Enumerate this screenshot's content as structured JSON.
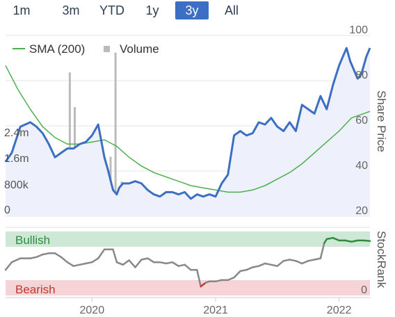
{
  "range_selector": {
    "buttons": [
      "1m",
      "3m",
      "YTD",
      "1y",
      "3y",
      "All"
    ],
    "active": "3y"
  },
  "colors": {
    "price": "#3b6fc4",
    "sma": "#4caf50",
    "volume": "#bbbbbb",
    "area_fill": "#eef1fb",
    "bullish_band": "#cde9d6",
    "bearish_band": "#f6d3d6",
    "bullish_text": "#2e8a3e",
    "bearish_text": "#c0392b",
    "rank_neutral": "#888888",
    "rank_bull": "#2e8b3a",
    "rank_bear": "#c0392b"
  },
  "chart_data": [
    {
      "type": "line",
      "x_axis": {
        "start": 2019.3,
        "end": 2022.25,
        "ticks": [
          "2020",
          "2021",
          "2022"
        ],
        "tick_values": [
          2020,
          2021,
          2022
        ]
      },
      "price_axis": {
        "title": "Share Price",
        "ticks": [
          "100",
          "80",
          "60",
          "40",
          "20"
        ],
        "tick_values": [
          100,
          80,
          60,
          40,
          20
        ],
        "ylim": [
          15,
          100
        ]
      },
      "volume_axis": {
        "ticks": [
          "2.4m",
          "1.6m",
          "800k",
          "0"
        ],
        "tick_values": [
          2400000,
          1600000,
          800000,
          0
        ],
        "ylim": [
          0,
          3800000
        ]
      },
      "legend": {
        "sma_label": "SMA (200)",
        "volume_label": "Volume",
        "placement": "top-left"
      },
      "series": [
        {
          "name": "Share Price",
          "x": [
            2019.3,
            2019.35,
            2019.42,
            2019.5,
            2019.55,
            2019.6,
            2019.65,
            2019.7,
            2019.75,
            2019.8,
            2019.85,
            2019.9,
            2019.95,
            2020.0,
            2020.05,
            2020.1,
            2020.13,
            2020.17,
            2020.2,
            2020.22,
            2020.25,
            2020.3,
            2020.35,
            2020.4,
            2020.45,
            2020.5,
            2020.55,
            2020.6,
            2020.65,
            2020.7,
            2020.75,
            2020.8,
            2020.85,
            2020.9,
            2020.95,
            2021.0,
            2021.05,
            2021.1,
            2021.15,
            2021.2,
            2021.25,
            2021.3,
            2021.35,
            2021.4,
            2021.45,
            2021.5,
            2021.55,
            2021.6,
            2021.65,
            2021.7,
            2021.75,
            2021.8,
            2021.85,
            2021.9,
            2021.95,
            2022.0,
            2022.03,
            2022.06,
            2022.09,
            2022.12,
            2022.15,
            2022.18,
            2022.22,
            2022.25
          ],
          "values": [
            40,
            44,
            56,
            58,
            56,
            53,
            48,
            42,
            44,
            46,
            46,
            48,
            49,
            52,
            57,
            42,
            36,
            27,
            25,
            28,
            30,
            30,
            31,
            30,
            27,
            25,
            24,
            26,
            26,
            25,
            26,
            23,
            25,
            24,
            25,
            24,
            30,
            34,
            52,
            54,
            52,
            53,
            58,
            57,
            60,
            56,
            54,
            58,
            54,
            66,
            64,
            62,
            70,
            64,
            75,
            84,
            88,
            92,
            86,
            82,
            78,
            80,
            88,
            92
          ]
        },
        {
          "name": "SMA (200)",
          "x": [
            2019.3,
            2019.4,
            2019.5,
            2019.6,
            2019.7,
            2019.8,
            2019.9,
            2020.0,
            2020.1,
            2020.2,
            2020.3,
            2020.4,
            2020.5,
            2020.6,
            2020.7,
            2020.8,
            2020.9,
            2021.0,
            2021.1,
            2021.2,
            2021.3,
            2021.4,
            2021.5,
            2021.6,
            2021.7,
            2021.8,
            2021.9,
            2022.0,
            2022.1,
            2022.2,
            2022.25
          ],
          "values": [
            84,
            73,
            64,
            56,
            51,
            48,
            48,
            49,
            50,
            47,
            42,
            38,
            35,
            33,
            31,
            29,
            28,
            27,
            26,
            26,
            27,
            29,
            32,
            35,
            39,
            44,
            49,
            54,
            60,
            62,
            63
          ]
        },
        {
          "name": "Volume",
          "x": [
            2019.4,
            2019.5,
            2019.58,
            2019.65,
            2019.7,
            2019.75,
            2019.82,
            2019.86,
            2019.9,
            2019.95,
            2020.0,
            2020.05,
            2020.1,
            2020.15,
            2020.19,
            2020.24,
            2020.3,
            2020.35,
            2020.42,
            2020.5,
            2020.6,
            2020.7,
            2020.8,
            2020.9,
            2021.0,
            2021.05,
            2021.1,
            2021.13,
            2021.16,
            2021.19,
            2021.22,
            2021.26,
            2021.3,
            2021.35,
            2021.4,
            2021.45,
            2021.5,
            2021.55,
            2021.6,
            2021.65,
            2021.7,
            2021.75,
            2021.8,
            2021.85,
            2021.9,
            2021.95,
            2022.0,
            2022.05,
            2022.1,
            2022.15,
            2022.2
          ],
          "values": [
            180000,
            240000,
            160000,
            320000,
            1100000,
            420000,
            2900000,
            2200000,
            350000,
            290000,
            170000,
            240000,
            300000,
            1200000,
            3300000,
            700000,
            550000,
            320000,
            250000,
            210000,
            200000,
            230000,
            260000,
            320000,
            180000,
            260000,
            620000,
            880000,
            780000,
            1500000,
            1100000,
            560000,
            420000,
            330000,
            280000,
            240000,
            260000,
            230000,
            300000,
            240000,
            280000,
            330000,
            390000,
            500000,
            420000,
            360000,
            340000,
            460000,
            390000,
            420000,
            300000
          ]
        }
      ]
    },
    {
      "type": "line",
      "axis": {
        "title": "StockRank",
        "ticks": [
          "0"
        ],
        "tick_values": [
          0
        ],
        "ylim": [
          0,
          100
        ]
      },
      "bands": [
        {
          "label": "Bullish",
          "from": 80,
          "to": 100
        },
        {
          "label": "Bearish",
          "from": 0,
          "to": 20
        }
      ],
      "series": [
        {
          "name": "StockRank",
          "x": [
            2019.3,
            2019.35,
            2019.42,
            2019.5,
            2019.55,
            2019.6,
            2019.65,
            2019.7,
            2019.75,
            2019.8,
            2019.85,
            2019.9,
            2019.95,
            2020.0,
            2020.05,
            2020.1,
            2020.17,
            2020.2,
            2020.25,
            2020.3,
            2020.35,
            2020.4,
            2020.45,
            2020.5,
            2020.55,
            2020.6,
            2020.65,
            2020.7,
            2020.75,
            2020.8,
            2020.85,
            2020.88,
            2020.92,
            2020.95,
            2021.0,
            2021.05,
            2021.1,
            2021.15,
            2021.2,
            2021.25,
            2021.3,
            2021.35,
            2021.4,
            2021.45,
            2021.5,
            2021.55,
            2021.6,
            2021.65,
            2021.7,
            2021.75,
            2021.8,
            2021.85,
            2021.88,
            2021.9,
            2021.95,
            2022.0,
            2022.05,
            2022.1,
            2022.15,
            2022.2,
            2022.25
          ],
          "values": [
            40,
            52,
            58,
            58,
            60,
            64,
            66,
            66,
            60,
            52,
            46,
            48,
            50,
            52,
            58,
            72,
            72,
            52,
            48,
            55,
            44,
            56,
            58,
            52,
            52,
            50,
            52,
            46,
            48,
            40,
            40,
            14,
            20,
            22,
            22,
            24,
            24,
            28,
            38,
            40,
            44,
            46,
            50,
            48,
            46,
            54,
            56,
            54,
            50,
            54,
            56,
            58,
            82,
            88,
            90,
            86,
            86,
            84,
            86,
            86,
            85
          ]
        }
      ]
    }
  ]
}
